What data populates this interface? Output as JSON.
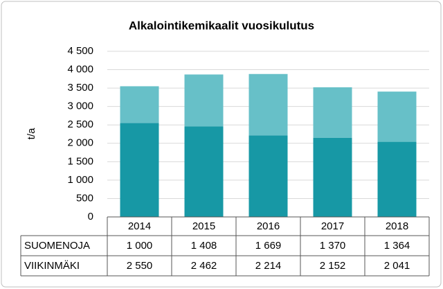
{
  "chart_data": {
    "type": "stacked-bar",
    "title": "Alkalointikemikaalit vuosikulutus",
    "y_label": "t/a",
    "categories": [
      "2014",
      "2015",
      "2016",
      "2017",
      "2018"
    ],
    "series": [
      {
        "name": "SUOMENOJA",
        "color": "#67c0c8",
        "values": [
          1000,
          1408,
          1669,
          1370,
          1364
        ],
        "value_labels": [
          "1 000",
          "1 408",
          "1 669",
          "1 370",
          "1 364"
        ]
      },
      {
        "name": "VIIKINMÄKI",
        "color": "#1798a5",
        "values": [
          2550,
          2462,
          2214,
          2152,
          2041
        ],
        "value_labels": [
          "2 550",
          "2 462",
          "2 214",
          "2 152",
          "2 041"
        ]
      }
    ],
    "ylim": [
      0,
      4500
    ],
    "yticks": [
      0,
      500,
      {
        "value": 1000,
        "label": "1 000"
      },
      {
        "value": 1500,
        "label": "1 500"
      },
      {
        "value": 2000,
        "label": "2 000"
      },
      {
        "value": 2500,
        "label": "2 500"
      },
      {
        "value": 3000,
        "label": "3 000"
      },
      {
        "value": 3500,
        "label": "3 500"
      },
      {
        "value": 4000,
        "label": "4 000"
      },
      {
        "value": 4500,
        "label": "4 500"
      }
    ],
    "grid": true
  }
}
